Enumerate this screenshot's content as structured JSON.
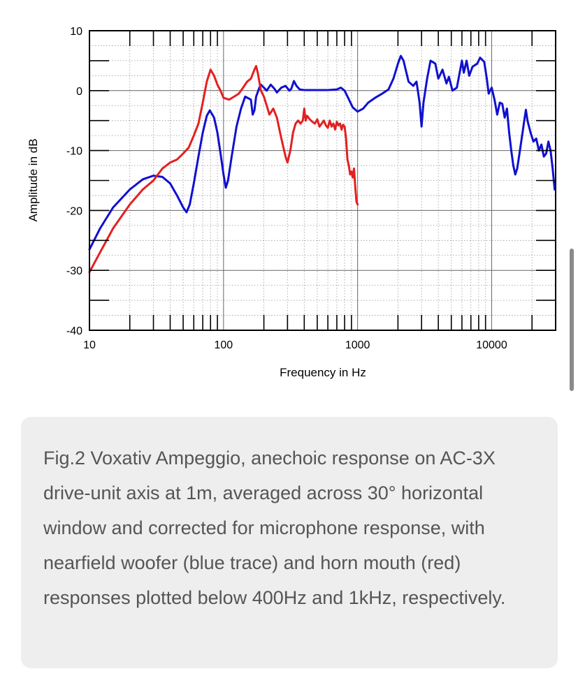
{
  "chart_data": {
    "type": "line",
    "title": "",
    "xlabel": "Frequency in Hz",
    "ylabel": "Amplitude in dB",
    "x_scale": "log",
    "xlim": [
      10,
      30000
    ],
    "ylim": [
      -40,
      10
    ],
    "x_ticks": [
      10,
      100,
      1000,
      10000
    ],
    "x_tick_labels": [
      "10",
      "100",
      "1000",
      "10000"
    ],
    "y_ticks": [
      10,
      0,
      -10,
      -20,
      -30,
      -40
    ],
    "y_tick_labels": [
      "10",
      "0",
      "-10",
      "-20",
      "-30",
      "-40"
    ],
    "grid": true,
    "series": [
      {
        "color": "#1010d0",
        "points": [
          [
            10,
            -26.5
          ],
          [
            12,
            -23
          ],
          [
            15,
            -19.5
          ],
          [
            20,
            -16.5
          ],
          [
            25,
            -14.8
          ],
          [
            30,
            -14.2
          ],
          [
            35,
            -14.4
          ],
          [
            40,
            -15.5
          ],
          [
            45,
            -17.5
          ],
          [
            50,
            -19.5
          ],
          [
            53,
            -20.3
          ],
          [
            56,
            -19
          ],
          [
            60,
            -15.5
          ],
          [
            65,
            -11
          ],
          [
            70,
            -7
          ],
          [
            75,
            -4.2
          ],
          [
            79,
            -3.3
          ],
          [
            85,
            -4.5
          ],
          [
            90,
            -7
          ],
          [
            95,
            -10.5
          ],
          [
            100,
            -14
          ],
          [
            104,
            -16.2
          ],
          [
            108,
            -15
          ],
          [
            115,
            -11
          ],
          [
            125,
            -6
          ],
          [
            135,
            -3
          ],
          [
            145,
            -1
          ],
          [
            160,
            -1.5
          ],
          [
            165,
            -4
          ],
          [
            170,
            -3.3
          ],
          [
            175,
            -1
          ],
          [
            185,
            0.5
          ],
          [
            190,
            1
          ],
          [
            200,
            0.5
          ],
          [
            210,
            0
          ],
          [
            225,
            1
          ],
          [
            240,
            0.3
          ],
          [
            250,
            -0.3
          ],
          [
            270,
            0.5
          ],
          [
            290,
            0.8
          ],
          [
            310,
            0
          ],
          [
            320,
            0.3
          ],
          [
            335,
            1.6
          ],
          [
            350,
            0.8
          ],
          [
            370,
            0.2
          ],
          [
            400,
            0.1
          ],
          [
            500,
            0.1
          ],
          [
            600,
            0.1
          ],
          [
            700,
            0.2
          ],
          [
            750,
            0.5
          ],
          [
            800,
            0
          ],
          [
            850,
            -1.2
          ],
          [
            920,
            -2.8
          ],
          [
            1000,
            -3.5
          ],
          [
            1100,
            -3
          ],
          [
            1200,
            -2
          ],
          [
            1350,
            -1.2
          ],
          [
            1500,
            -0.6
          ],
          [
            1700,
            0.2
          ],
          [
            1850,
            2
          ],
          [
            2000,
            4.5
          ],
          [
            2100,
            5.8
          ],
          [
            2200,
            5
          ],
          [
            2400,
            1.5
          ],
          [
            2600,
            0.8
          ],
          [
            2750,
            1.5
          ],
          [
            2900,
            -2
          ],
          [
            3000,
            -6
          ],
          [
            3100,
            -2
          ],
          [
            3300,
            2
          ],
          [
            3500,
            5
          ],
          [
            3800,
            4.5
          ],
          [
            4000,
            2
          ],
          [
            4300,
            3.5
          ],
          [
            4600,
            1.2
          ],
          [
            4800,
            2.3
          ],
          [
            5100,
            0
          ],
          [
            5500,
            0.5
          ],
          [
            6000,
            5
          ],
          [
            6200,
            3
          ],
          [
            6500,
            5
          ],
          [
            6800,
            2.5
          ],
          [
            7200,
            4
          ],
          [
            7800,
            4.5
          ],
          [
            8200,
            5.5
          ],
          [
            8800,
            4.8
          ],
          [
            9200,
            2
          ],
          [
            9500,
            -0.5
          ],
          [
            10000,
            0.5
          ],
          [
            10500,
            -1.5
          ],
          [
            11000,
            -4
          ],
          [
            11500,
            -2
          ],
          [
            12000,
            -2.2
          ],
          [
            12500,
            -4.5
          ],
          [
            13000,
            -3
          ],
          [
            13500,
            -7
          ],
          [
            14000,
            -10
          ],
          [
            14500,
            -12.5
          ],
          [
            15000,
            -14
          ],
          [
            15500,
            -13
          ],
          [
            16000,
            -11
          ],
          [
            17000,
            -7
          ],
          [
            17500,
            -5
          ],
          [
            18000,
            -3.2
          ],
          [
            18500,
            -5
          ],
          [
            19500,
            -7
          ],
          [
            20500,
            -8.5
          ],
          [
            21500,
            -8
          ],
          [
            22500,
            -10
          ],
          [
            23500,
            -9
          ],
          [
            24500,
            -11
          ],
          [
            25500,
            -10.5
          ],
          [
            26500,
            -8.5
          ],
          [
            27500,
            -10
          ],
          [
            28500,
            -13
          ],
          [
            29500,
            -16.5
          ]
        ]
      },
      {
        "color": "#e32020",
        "points": [
          [
            10,
            -30.3
          ],
          [
            12,
            -27
          ],
          [
            15,
            -23
          ],
          [
            20,
            -19
          ],
          [
            25,
            -16.5
          ],
          [
            30,
            -15
          ],
          [
            35,
            -13
          ],
          [
            40,
            -12
          ],
          [
            45,
            -11.5
          ],
          [
            50,
            -10.5
          ],
          [
            55,
            -9.5
          ],
          [
            60,
            -7.5
          ],
          [
            65,
            -5.5
          ],
          [
            70,
            -2
          ],
          [
            75,
            1.5
          ],
          [
            80,
            3.5
          ],
          [
            85,
            2.5
          ],
          [
            90,
            1
          ],
          [
            95,
            0
          ],
          [
            100,
            -1.2
          ],
          [
            110,
            -1.5
          ],
          [
            120,
            -1
          ],
          [
            130,
            -0.5
          ],
          [
            140,
            0.5
          ],
          [
            150,
            1.5
          ],
          [
            160,
            2
          ],
          [
            170,
            3.5
          ],
          [
            175,
            4.1
          ],
          [
            180,
            3
          ],
          [
            190,
            0
          ],
          [
            200,
            -1
          ],
          [
            210,
            -2.5
          ],
          [
            220,
            -4
          ],
          [
            235,
            -3
          ],
          [
            250,
            -4.5
          ],
          [
            270,
            -8
          ],
          [
            290,
            -11
          ],
          [
            300,
            -12
          ],
          [
            315,
            -10
          ],
          [
            330,
            -7
          ],
          [
            345,
            -5.5
          ],
          [
            360,
            -5
          ],
          [
            375,
            -5.5
          ],
          [
            390,
            -5
          ],
          [
            400,
            -3
          ],
          [
            410,
            -5
          ],
          [
            420,
            -4.2
          ],
          [
            440,
            -4.8
          ],
          [
            460,
            -5.2
          ],
          [
            480,
            -5.5
          ],
          [
            500,
            -4.8
          ],
          [
            520,
            -6
          ],
          [
            540,
            -5.5
          ],
          [
            560,
            -5
          ],
          [
            580,
            -5.8
          ],
          [
            600,
            -6.2
          ],
          [
            620,
            -5
          ],
          [
            640,
            -6
          ],
          [
            660,
            -5.5
          ],
          [
            680,
            -6.5
          ],
          [
            700,
            -5.2
          ],
          [
            720,
            -5.8
          ],
          [
            740,
            -5.5
          ],
          [
            760,
            -6.5
          ],
          [
            780,
            -5.7
          ],
          [
            800,
            -6
          ],
          [
            820,
            -8
          ],
          [
            840,
            -11.5
          ],
          [
            860,
            -12.5
          ],
          [
            880,
            -14
          ],
          [
            900,
            -13.5
          ],
          [
            920,
            -14.5
          ],
          [
            940,
            -13
          ],
          [
            960,
            -16
          ],
          [
            980,
            -18.5
          ],
          [
            1000,
            -19
          ]
        ]
      }
    ]
  },
  "caption": "Fig.2 Voxativ Ampeggio, anechoic response on AC-3X drive-unit axis at 1m, averaged across 30° horizontal window and corrected for microphone response, with nearfield woofer (blue trace) and horn mouth (red) responses plotted below 400Hz and 1kHz, respectively."
}
